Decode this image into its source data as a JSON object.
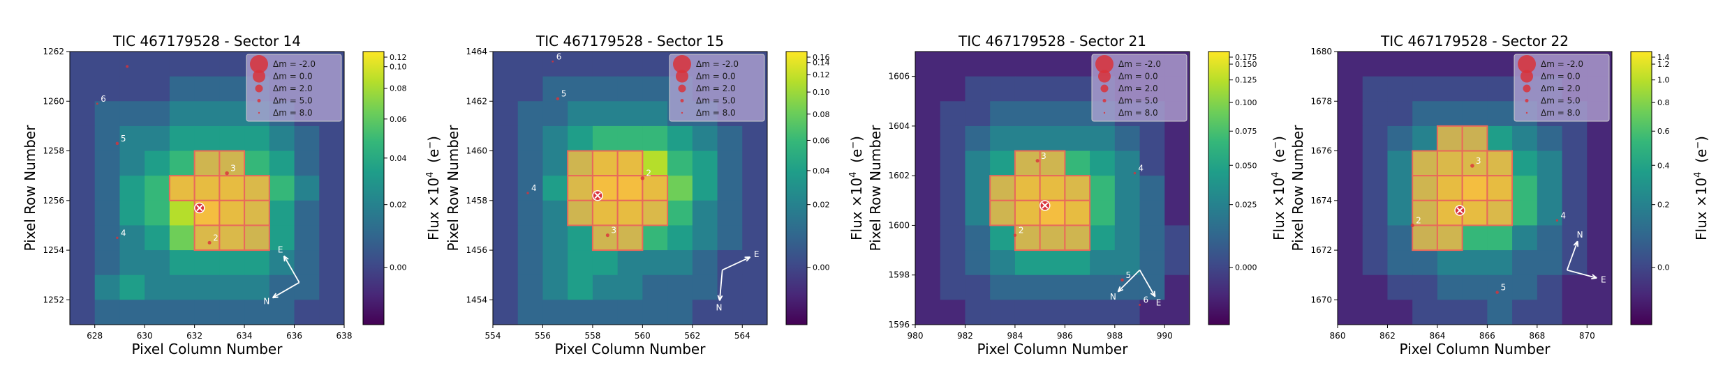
{
  "figure": {
    "xlabel": "Pixel Column Number",
    "ylabel": "Pixel Row Number",
    "cbar_label_main": "Flux ×10",
    "cbar_label_exp": "4",
    "cbar_label_unit": "(e",
    "cbar_label_unit_sup": "−",
    "cbar_label_close": ")",
    "legend_prefix": "Δm =",
    "legend_entries": [
      "-2.0",
      "0.0",
      "2.0",
      "5.0",
      "8.0"
    ]
  },
  "colors": {
    "colormap": [
      "#440154",
      "#482878",
      "#3e4a89",
      "#31688e",
      "#26828e",
      "#1f9e89",
      "#35b779",
      "#6ece58",
      "#b5de2b",
      "#fde725"
    ],
    "aperture": "#e8695a",
    "aperture_fill": "#f2b447",
    "target_marker": "#d9323a",
    "source_marker": "#d9323a",
    "legend_bg": "#b6a7d6",
    "compass": "#ffffff"
  },
  "chart_data": [
    {
      "type": "heatmap",
      "title": "TIC 467179528 - Sector 14",
      "xlim": [
        627,
        638
      ],
      "ylim": [
        1251,
        1262
      ],
      "xticks": [
        "628",
        "630",
        "632",
        "634",
        "636",
        "638"
      ],
      "yticks": [
        "1252",
        "1254",
        "1256",
        "1258",
        "1260",
        "1262"
      ],
      "cbar_ticks": [
        "0.12",
        "0.10",
        "0.08",
        "0.06",
        "0.04",
        "0.02",
        "0.00"
      ],
      "grid": [
        [
          2,
          2,
          2,
          2,
          2,
          2,
          2,
          2,
          2,
          2,
          2
        ],
        [
          2,
          2,
          2,
          2,
          3,
          3,
          3,
          3,
          2,
          2,
          2
        ],
        [
          2,
          3,
          3,
          3,
          4,
          4,
          4,
          4,
          3,
          2,
          2
        ],
        [
          2,
          3,
          4,
          4,
          5,
          5,
          5,
          5,
          4,
          3,
          2
        ],
        [
          2,
          3,
          4,
          5,
          6,
          6,
          6,
          6,
          5,
          3,
          2
        ],
        [
          2,
          3,
          5,
          6,
          8,
          8,
          8,
          7,
          6,
          4,
          2
        ],
        [
          2,
          3,
          5,
          6,
          8,
          9,
          8,
          7,
          5,
          3,
          2
        ],
        [
          2,
          3,
          4,
          5,
          7,
          7,
          7,
          6,
          5,
          3,
          2
        ],
        [
          2,
          3,
          4,
          4,
          5,
          5,
          5,
          5,
          4,
          3,
          2
        ],
        [
          2,
          4,
          5,
          4,
          4,
          4,
          4,
          4,
          3,
          3,
          2
        ],
        [
          2,
          3,
          3,
          3,
          3,
          3,
          3,
          3,
          3,
          2,
          2
        ]
      ],
      "aperture": [
        [
          631,
          1256
        ],
        [
          632,
          1256
        ],
        [
          633,
          1256
        ],
        [
          634,
          1256
        ],
        [
          632,
          1255
        ],
        [
          633,
          1255
        ],
        [
          634,
          1255
        ],
        [
          632,
          1254
        ],
        [
          633,
          1254
        ],
        [
          634,
          1254
        ],
        [
          632,
          1257
        ],
        [
          633,
          1257
        ]
      ],
      "target": [
        632.2,
        1255.7
      ],
      "sources": [
        {
          "label": "2",
          "x": 632.6,
          "y": 1254.3,
          "dm": 4.5
        },
        {
          "label": "3",
          "x": 633.3,
          "y": 1257.1,
          "dm": 4.0
        },
        {
          "label": "4",
          "x": 628.9,
          "y": 1254.5,
          "dm": 6.0
        },
        {
          "label": "5",
          "x": 628.9,
          "y": 1258.3,
          "dm": 5.0
        },
        {
          "label": "6",
          "x": 628.1,
          "y": 1259.9,
          "dm": 6.5
        },
        {
          "label": "",
          "x": 629.3,
          "y": 1261.4,
          "dm": 5.5
        }
      ],
      "compass": {
        "E_angle": 120,
        "N_angle": 210,
        "origin": [
          636.2,
          1252.7
        ]
      }
    },
    {
      "type": "heatmap",
      "title": "TIC 467179528 - Sector 15",
      "xlim": [
        554,
        565
      ],
      "ylim": [
        1453,
        1464
      ],
      "xticks": [
        "554",
        "556",
        "558",
        "560",
        "562",
        "564"
      ],
      "yticks": [
        "1454",
        "1456",
        "1458",
        "1460",
        "1462",
        "1464"
      ],
      "cbar_ticks": [
        "0.16",
        "0.14",
        "0.12",
        "0.10",
        "0.08",
        "0.06",
        "0.04",
        "0.02",
        "0.00"
      ],
      "grid": [
        [
          2,
          2,
          2,
          2,
          2,
          2,
          2,
          2,
          2,
          2,
          2
        ],
        [
          2,
          2,
          3,
          3,
          3,
          3,
          3,
          3,
          2,
          2,
          2
        ],
        [
          2,
          3,
          3,
          4,
          4,
          4,
          4,
          3,
          3,
          2,
          2
        ],
        [
          2,
          3,
          4,
          5,
          6,
          6,
          6,
          5,
          4,
          3,
          2
        ],
        [
          2,
          3,
          4,
          6,
          8,
          8,
          8,
          6,
          5,
          3,
          2
        ],
        [
          2,
          3,
          5,
          7,
          9,
          9,
          8,
          7,
          5,
          3,
          2
        ],
        [
          2,
          3,
          4,
          6,
          8,
          8,
          7,
          6,
          4,
          3,
          2
        ],
        [
          2,
          3,
          4,
          5,
          6,
          6,
          6,
          5,
          4,
          3,
          2
        ],
        [
          2,
          3,
          4,
          5,
          5,
          4,
          4,
          4,
          3,
          2,
          2
        ],
        [
          2,
          3,
          4,
          5,
          4,
          4,
          3,
          3,
          3,
          2,
          2
        ],
        [
          2,
          3,
          3,
          3,
          3,
          3,
          3,
          3,
          2,
          2,
          2
        ]
      ],
      "aperture": [
        [
          557,
          1459
        ],
        [
          558,
          1459
        ],
        [
          559,
          1459
        ],
        [
          557,
          1458
        ],
        [
          558,
          1458
        ],
        [
          559,
          1458
        ],
        [
          560,
          1458
        ],
        [
          557,
          1457
        ],
        [
          558,
          1457
        ],
        [
          559,
          1457
        ],
        [
          560,
          1457
        ],
        [
          558,
          1456
        ],
        [
          559,
          1456
        ]
      ],
      "target": [
        558.2,
        1458.2
      ],
      "sources": [
        {
          "label": "2",
          "x": 560.0,
          "y": 1458.9,
          "dm": 4.0
        },
        {
          "label": "3",
          "x": 558.6,
          "y": 1456.6,
          "dm": 4.5
        },
        {
          "label": "4",
          "x": 555.4,
          "y": 1458.3,
          "dm": 6.0
        },
        {
          "label": "5",
          "x": 556.6,
          "y": 1462.1,
          "dm": 5.0
        },
        {
          "label": "6",
          "x": 556.4,
          "y": 1463.6,
          "dm": 6.5
        }
      ],
      "compass": {
        "E_angle": 25,
        "N_angle": 265,
        "origin": [
          563.2,
          1455.2
        ]
      }
    },
    {
      "type": "heatmap",
      "title": "TIC 467179528 - Sector 21",
      "xlim": [
        980,
        991
      ],
      "ylim": [
        1596,
        1607
      ],
      "xticks": [
        "980",
        "982",
        "984",
        "986",
        "988",
        "990"
      ],
      "yticks": [
        "1596",
        "1598",
        "1600",
        "1602",
        "1604",
        "1606"
      ],
      "cbar_ticks": [
        "0.175",
        "0.150",
        "0.125",
        "0.100",
        "0.075",
        "0.050",
        "0.025",
        "0.000"
      ],
      "grid": [
        [
          1,
          1,
          1,
          1,
          1,
          1,
          1,
          1,
          1,
          1,
          1
        ],
        [
          1,
          1,
          2,
          2,
          2,
          2,
          2,
          2,
          1,
          1,
          1
        ],
        [
          1,
          2,
          2,
          3,
          3,
          3,
          3,
          3,
          2,
          2,
          1
        ],
        [
          1,
          2,
          3,
          4,
          4,
          4,
          4,
          4,
          3,
          2,
          1
        ],
        [
          1,
          2,
          4,
          5,
          6,
          6,
          6,
          5,
          4,
          2,
          1
        ],
        [
          1,
          2,
          4,
          6,
          8,
          8,
          7,
          6,
          4,
          3,
          1
        ],
        [
          1,
          2,
          4,
          6,
          8,
          9,
          8,
          6,
          4,
          3,
          1
        ],
        [
          1,
          2,
          3,
          5,
          6,
          6,
          6,
          5,
          4,
          3,
          2
        ],
        [
          1,
          2,
          3,
          4,
          5,
          5,
          5,
          4,
          4,
          3,
          2
        ],
        [
          1,
          2,
          2,
          3,
          3,
          3,
          3,
          3,
          3,
          3,
          1
        ],
        [
          1,
          1,
          2,
          2,
          2,
          2,
          2,
          2,
          2,
          1,
          1
        ]
      ],
      "aperture": [
        [
          984,
          1602
        ],
        [
          985,
          1602
        ],
        [
          983,
          1601
        ],
        [
          984,
          1601
        ],
        [
          985,
          1601
        ],
        [
          986,
          1601
        ],
        [
          983,
          1600
        ],
        [
          984,
          1600
        ],
        [
          985,
          1600
        ],
        [
          986,
          1600
        ],
        [
          984,
          1599
        ],
        [
          985,
          1599
        ],
        [
          986,
          1599
        ]
      ],
      "target": [
        985.2,
        1600.8
      ],
      "sources": [
        {
          "label": "2",
          "x": 984.0,
          "y": 1599.6,
          "dm": 5.0
        },
        {
          "label": "3",
          "x": 984.9,
          "y": 1602.6,
          "dm": 4.5
        },
        {
          "label": "4",
          "x": 988.8,
          "y": 1602.1,
          "dm": 6.0
        },
        {
          "label": "5",
          "x": 988.3,
          "y": 1597.8,
          "dm": 5.0
        },
        {
          "label": "6",
          "x": 989.0,
          "y": 1596.8,
          "dm": 6.5
        }
      ],
      "compass": {
        "E_angle": 300,
        "N_angle": 225,
        "origin": [
          989.0,
          1598.2
        ]
      }
    },
    {
      "type": "heatmap",
      "title": "TIC 467179528 - Sector 22",
      "xlim": [
        860,
        871
      ],
      "ylim": [
        1669,
        1680
      ],
      "xticks": [
        "860",
        "862",
        "864",
        "866",
        "868",
        "870"
      ],
      "yticks": [
        "1670",
        "1672",
        "1674",
        "1676",
        "1678",
        "1680"
      ],
      "cbar_ticks": [
        "1.4",
        "1.2",
        "1.0",
        "0.8",
        "0.6",
        "0.4",
        "0.2",
        "0.0"
      ],
      "grid": [
        [
          1,
          1,
          1,
          1,
          1,
          1,
          1,
          1,
          1,
          1,
          1
        ],
        [
          1,
          2,
          2,
          2,
          2,
          2,
          2,
          2,
          2,
          1,
          1
        ],
        [
          1,
          2,
          2,
          3,
          3,
          3,
          3,
          3,
          2,
          2,
          1
        ],
        [
          1,
          2,
          3,
          4,
          5,
          5,
          5,
          4,
          3,
          2,
          1
        ],
        [
          1,
          2,
          4,
          6,
          7,
          7,
          7,
          5,
          4,
          2,
          1
        ],
        [
          1,
          2,
          4,
          6,
          8,
          9,
          8,
          6,
          4,
          2,
          1
        ],
        [
          1,
          2,
          4,
          6,
          8,
          8,
          7,
          6,
          4,
          2,
          1
        ],
        [
          1,
          2,
          3,
          5,
          6,
          6,
          6,
          4,
          3,
          2,
          1
        ],
        [
          1,
          2,
          3,
          3,
          4,
          4,
          4,
          3,
          3,
          2,
          1
        ],
        [
          1,
          1,
          2,
          2,
          3,
          3,
          3,
          3,
          2,
          1,
          1
        ],
        [
          1,
          1,
          1,
          2,
          2,
          2,
          3,
          2,
          2,
          1,
          1
        ]
      ],
      "aperture": [
        [
          864,
          1676
        ],
        [
          865,
          1676
        ],
        [
          863,
          1675
        ],
        [
          864,
          1675
        ],
        [
          865,
          1675
        ],
        [
          866,
          1675
        ],
        [
          863,
          1674
        ],
        [
          864,
          1674
        ],
        [
          865,
          1674
        ],
        [
          866,
          1674
        ],
        [
          863,
          1673
        ],
        [
          864,
          1673
        ],
        [
          865,
          1673
        ],
        [
          866,
          1673
        ],
        [
          863,
          1672
        ],
        [
          864,
          1672
        ]
      ],
      "target": [
        864.9,
        1673.6
      ],
      "sources": [
        {
          "label": "2",
          "x": 863.0,
          "y": 1673.0,
          "dm": 4.5
        },
        {
          "label": "3",
          "x": 865.4,
          "y": 1675.4,
          "dm": 4.0
        },
        {
          "label": "4",
          "x": 868.8,
          "y": 1673.2,
          "dm": 6.0
        },
        {
          "label": "5",
          "x": 866.4,
          "y": 1670.3,
          "dm": 5.0
        }
      ],
      "compass": {
        "E_angle": 345,
        "N_angle": 70,
        "origin": [
          869.2,
          1671.2
        ]
      }
    }
  ]
}
